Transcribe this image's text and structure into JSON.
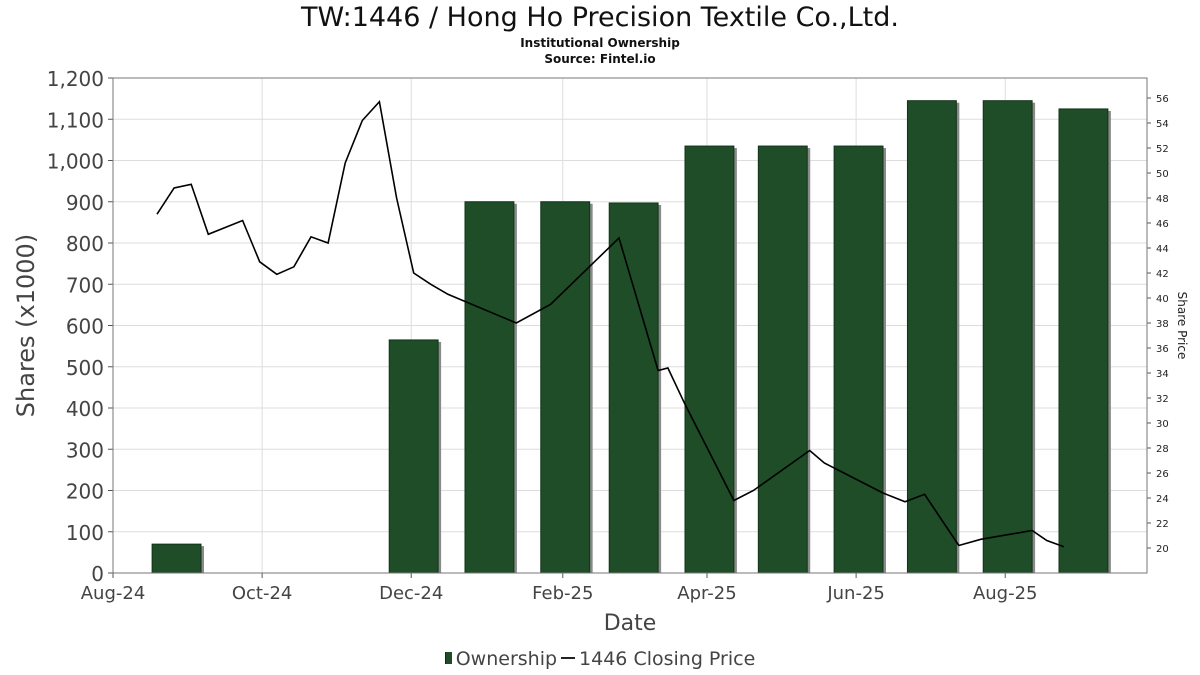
{
  "chart_data": {
    "type": "bar",
    "title": "TW:1446 / Hong Ho Precision Textile Co.,Ltd.",
    "subtitle": "Institutional Ownership",
    "source": "Source: Fintel.io",
    "xlabel": "Date",
    "ylabel": "Shares (x1000)",
    "y2label": "Share Price",
    "ylim": [
      0,
      1200
    ],
    "y2lim": [
      18,
      57.6
    ],
    "yticks": [
      "0",
      "100",
      "200",
      "300",
      "400",
      "500",
      "600",
      "700",
      "800",
      "900",
      "1,000",
      "1,100",
      "1,200"
    ],
    "y2ticks": [
      "20",
      "22",
      "24",
      "26",
      "28",
      "30",
      "32",
      "34",
      "36",
      "38",
      "40",
      "42",
      "44",
      "46",
      "48",
      "50",
      "52",
      "54",
      "56"
    ],
    "xticks": [
      {
        "label": "Aug-24",
        "date": "2024-08-01"
      },
      {
        "label": "Oct-24",
        "date": "2024-10-01"
      },
      {
        "label": "Dec-24",
        "date": "2024-12-01"
      },
      {
        "label": "Feb-25",
        "date": "2025-02-01"
      },
      {
        "label": "Apr-25",
        "date": "2025-04-01"
      },
      {
        "label": "Jun-25",
        "date": "2025-06-01"
      },
      {
        "label": "Aug-25",
        "date": "2025-08-01"
      }
    ],
    "grid": true,
    "legend_position": "bottom",
    "series": [
      {
        "name": "Ownership",
        "type": "bar",
        "color": "#1e4d28",
        "points": [
          {
            "start": "2024-08-17",
            "end": "2024-09-06",
            "value": 70
          },
          {
            "start": "2024-11-22",
            "end": "2024-12-12",
            "value": 565
          },
          {
            "start": "2024-12-23",
            "end": "2025-01-12",
            "value": 900
          },
          {
            "start": "2025-01-23",
            "end": "2025-02-12",
            "value": 900
          },
          {
            "start": "2025-02-20",
            "end": "2025-03-12",
            "value": 897
          },
          {
            "start": "2025-03-23",
            "end": "2025-04-12",
            "value": 1035
          },
          {
            "start": "2025-04-22",
            "end": "2025-05-12",
            "value": 1035
          },
          {
            "start": "2025-05-23",
            "end": "2025-06-12",
            "value": 1035
          },
          {
            "start": "2025-06-22",
            "end": "2025-07-12",
            "value": 1145
          },
          {
            "start": "2025-07-23",
            "end": "2025-08-12",
            "value": 1145
          },
          {
            "start": "2025-08-23",
            "end": "2025-09-12",
            "value": 1125
          }
        ]
      },
      {
        "name": "1446 Closing Price",
        "type": "line",
        "color": "#000000",
        "points": [
          {
            "date": "2024-08-19",
            "value": 46.7
          },
          {
            "date": "2024-08-26",
            "value": 48.8
          },
          {
            "date": "2024-09-02",
            "value": 49.1
          },
          {
            "date": "2024-09-09",
            "value": 45.1
          },
          {
            "date": "2024-09-23",
            "value": 46.2
          },
          {
            "date": "2024-09-30",
            "value": 42.9
          },
          {
            "date": "2024-10-07",
            "value": 41.9
          },
          {
            "date": "2024-10-14",
            "value": 42.5
          },
          {
            "date": "2024-10-21",
            "value": 44.9
          },
          {
            "date": "2024-10-28",
            "value": 44.4
          },
          {
            "date": "2024-11-04",
            "value": 50.8
          },
          {
            "date": "2024-11-11",
            "value": 54.2
          },
          {
            "date": "2024-11-18",
            "value": 55.7
          },
          {
            "date": "2024-11-25",
            "value": 48.0
          },
          {
            "date": "2024-12-02",
            "value": 42.0
          },
          {
            "date": "2024-12-09",
            "value": 41.1
          },
          {
            "date": "2024-12-16",
            "value": 40.3
          },
          {
            "date": "2025-01-13",
            "value": 38.0
          },
          {
            "date": "2025-01-27",
            "value": 39.5
          },
          {
            "date": "2025-02-24",
            "value": 44.8
          },
          {
            "date": "2025-03-12",
            "value": 34.2
          },
          {
            "date": "2025-03-16",
            "value": 34.4
          },
          {
            "date": "2025-03-23",
            "value": 31.5
          },
          {
            "date": "2025-04-12",
            "value": 23.8
          },
          {
            "date": "2025-04-20",
            "value": 24.6
          },
          {
            "date": "2025-05-13",
            "value": 27.8
          },
          {
            "date": "2025-05-19",
            "value": 26.8
          },
          {
            "date": "2025-06-12",
            "value": 24.4
          },
          {
            "date": "2025-06-21",
            "value": 23.7
          },
          {
            "date": "2025-06-29",
            "value": 24.3
          },
          {
            "date": "2025-07-13",
            "value": 20.2
          },
          {
            "date": "2025-07-22",
            "value": 20.7
          },
          {
            "date": "2025-08-12",
            "value": 21.4
          },
          {
            "date": "2025-08-18",
            "value": 20.6
          },
          {
            "date": "2025-08-25",
            "value": 20.1
          }
        ]
      }
    ]
  }
}
